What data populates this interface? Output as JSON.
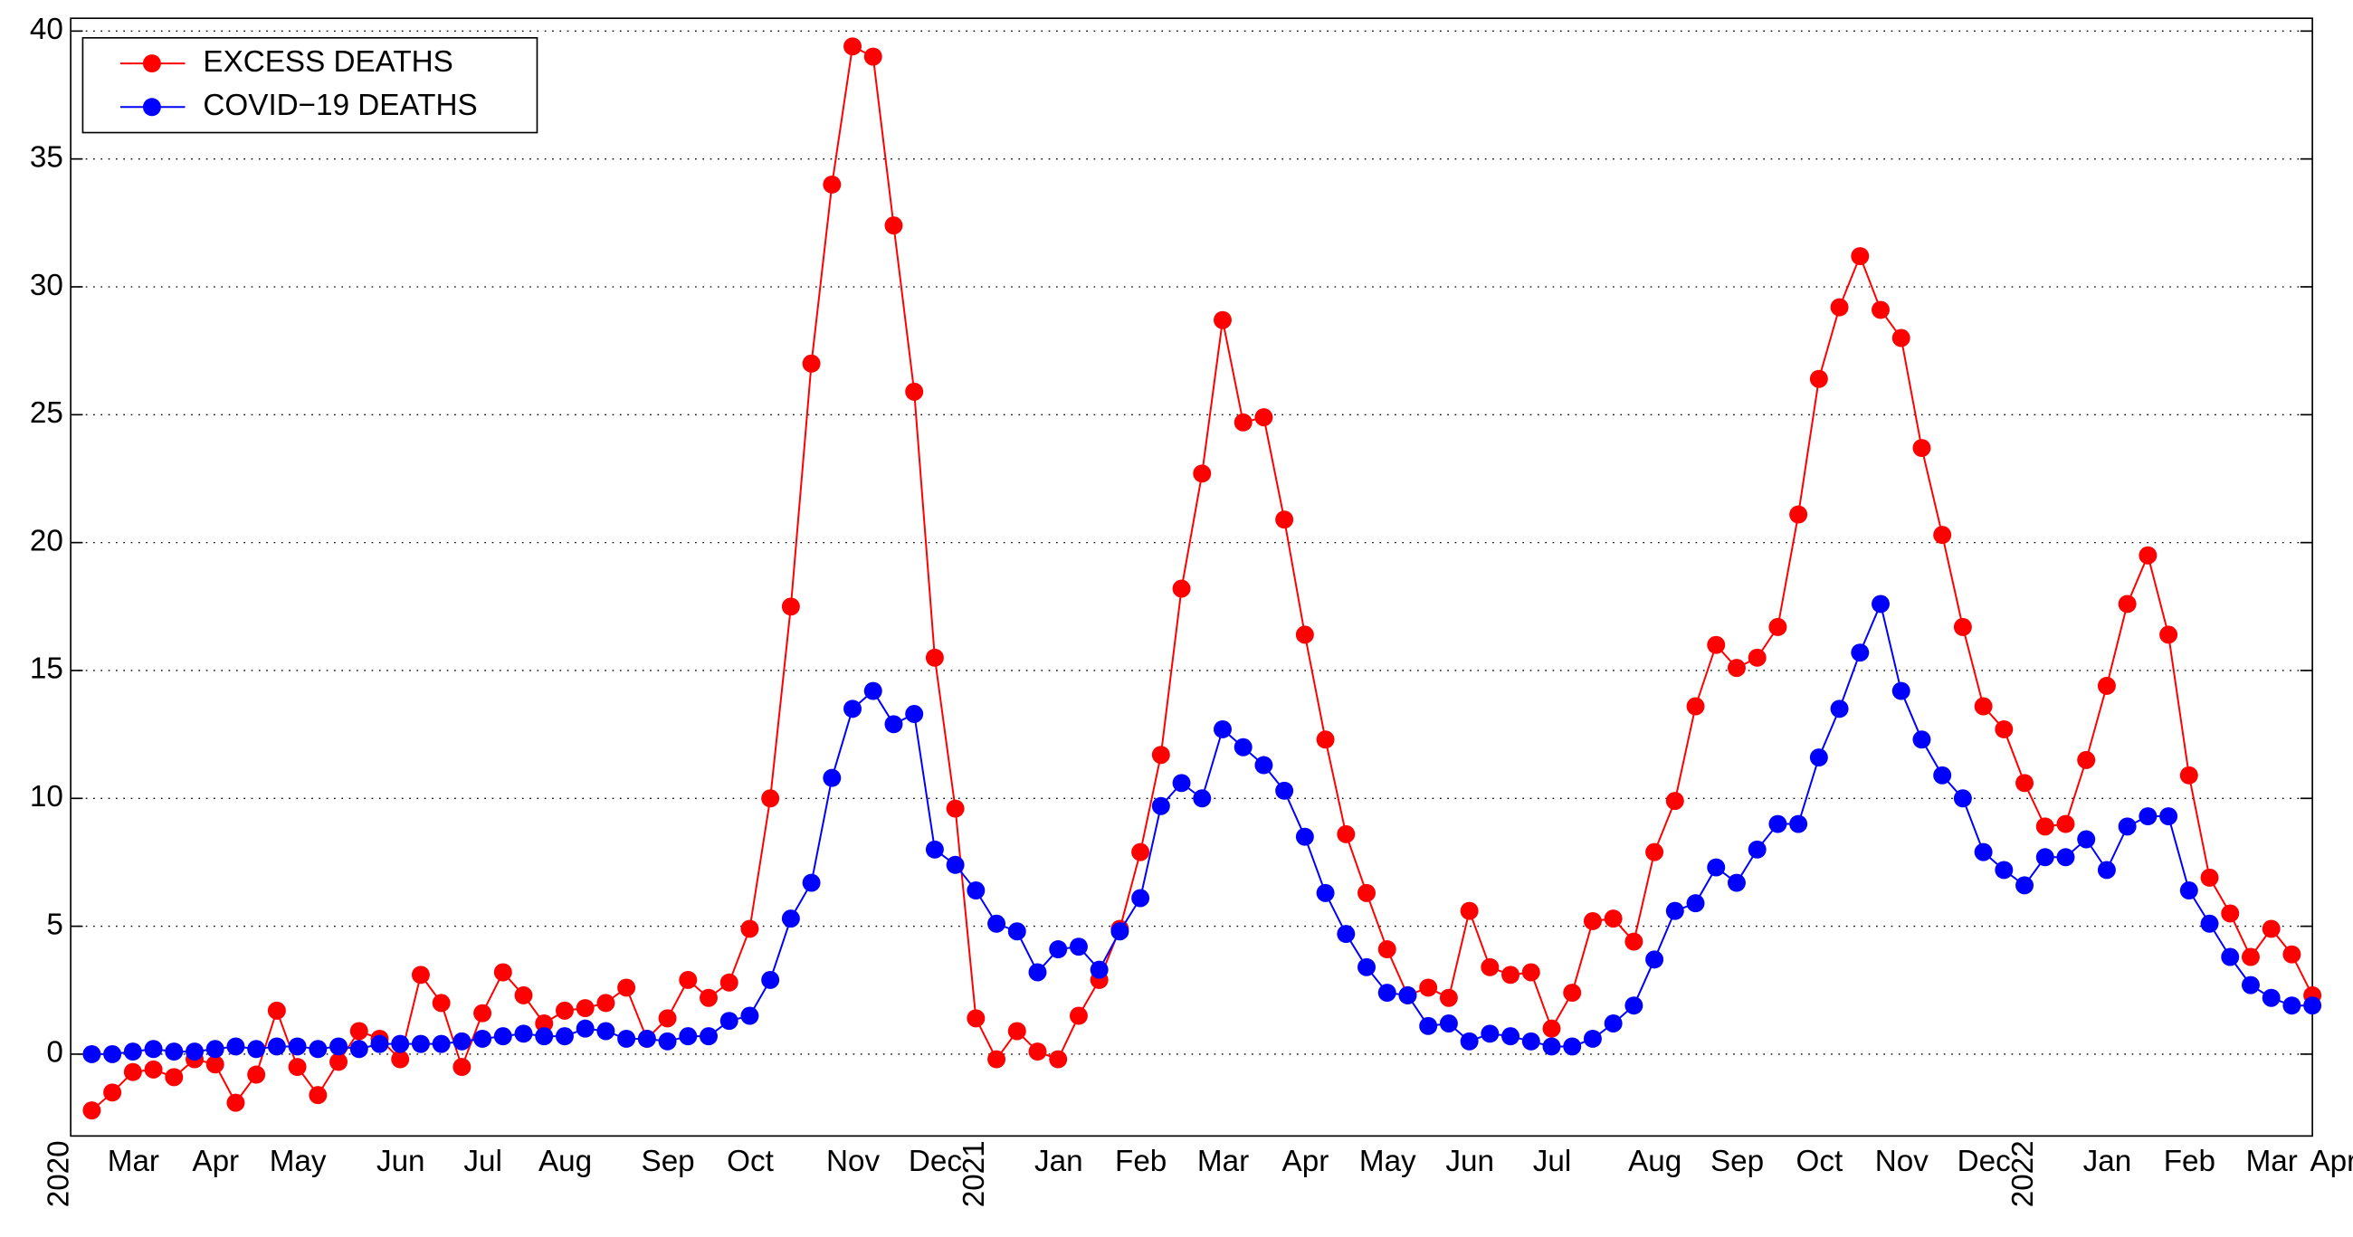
{
  "chart_data": {
    "type": "line",
    "categories": [
      null,
      "Mar",
      null,
      null,
      null,
      "Apr",
      null,
      null,
      null,
      "May",
      null,
      null,
      null,
      null,
      "Jun",
      null,
      null,
      null,
      "Jul",
      null,
      null,
      null,
      "Aug",
      null,
      null,
      null,
      null,
      "Sep",
      null,
      null,
      null,
      "Oct",
      null,
      null,
      null,
      null,
      "Nov",
      null,
      null,
      null,
      "Dec",
      null,
      null,
      null,
      null,
      null,
      "Jan",
      null,
      null,
      null,
      "Feb",
      null,
      null,
      null,
      "Mar",
      null,
      null,
      null,
      "Apr",
      null,
      null,
      null,
      "May",
      null,
      null,
      null,
      "Jun",
      null,
      null,
      null,
      "Jul",
      null,
      null,
      null,
      null,
      "Aug",
      null,
      null,
      null,
      "Sep",
      null,
      null,
      null,
      "Oct",
      null,
      null,
      null,
      "Nov",
      null,
      null,
      null,
      "Dec",
      null,
      null,
      null,
      null,
      null,
      "Jan",
      null,
      null,
      null,
      "Feb",
      null,
      null,
      null,
      "Mar",
      null,
      null,
      "Apr"
    ],
    "year_labels": [
      "2020",
      null,
      null,
      null,
      null,
      null,
      null,
      null,
      null,
      null,
      null,
      null,
      null,
      null,
      null,
      null,
      null,
      null,
      null,
      null,
      null,
      null,
      null,
      null,
      null,
      null,
      null,
      null,
      null,
      null,
      null,
      null,
      null,
      null,
      null,
      null,
      null,
      null,
      null,
      null,
      null,
      null,
      null,
      "2021",
      null,
      null,
      null,
      null,
      null,
      null,
      null,
      null,
      null,
      null,
      null,
      null,
      null,
      null,
      null,
      null,
      null,
      null,
      null,
      null,
      null,
      null,
      null,
      null,
      null,
      null,
      null,
      null,
      null,
      null,
      null,
      null,
      null,
      null,
      null,
      null,
      null,
      null,
      null,
      null,
      null,
      null,
      null,
      null,
      null,
      null,
      null,
      null,
      null,
      null,
      "2022",
      null,
      null,
      null,
      null,
      null,
      null,
      null,
      null,
      null,
      null,
      null,
      null,
      null,
      null
    ],
    "series": [
      {
        "name": "EXCESS DEATHS",
        "color": "#ff0000",
        "values": [
          -2.2,
          -1.5,
          -0.7,
          -0.6,
          -0.9,
          -0.2,
          -0.4,
          -1.9,
          -0.8,
          1.7,
          -0.5,
          -1.6,
          -0.3,
          0.9,
          0.6,
          -0.2,
          3.1,
          2.0,
          -0.5,
          1.6,
          3.2,
          2.3,
          1.2,
          1.7,
          1.8,
          2.0,
          2.6,
          0.6,
          1.4,
          2.9,
          2.2,
          2.8,
          4.9,
          10.0,
          17.5,
          27.0,
          34.0,
          39.4,
          39.0,
          32.4,
          25.9,
          15.5,
          9.6,
          1.4,
          -0.2,
          0.9,
          0.1,
          -0.2,
          1.5,
          2.9,
          4.9,
          7.9,
          11.7,
          18.2,
          22.7,
          28.7,
          24.7,
          24.9,
          20.9,
          16.4,
          12.3,
          8.6,
          6.3,
          4.1,
          2.3,
          2.6,
          2.2,
          5.6,
          3.4,
          3.1,
          3.2,
          1.0,
          2.4,
          5.2,
          5.3,
          4.4,
          7.9,
          9.9,
          13.6,
          16.0,
          15.1,
          15.5,
          16.7,
          21.1,
          26.4,
          29.2,
          31.2,
          29.1,
          28.0,
          23.7,
          20.3,
          16.7,
          13.6,
          12.7,
          10.6,
          8.9,
          9.0,
          11.5,
          14.4,
          17.6,
          19.5,
          16.4,
          10.9,
          6.9,
          5.5,
          3.8,
          4.9,
          3.9,
          2.3
        ]
      },
      {
        "name": "COVID−19 DEATHS",
        "color": "#0000ff",
        "values": [
          0.0,
          0.0,
          0.1,
          0.2,
          0.1,
          0.1,
          0.2,
          0.3,
          0.2,
          0.3,
          0.3,
          0.2,
          0.3,
          0.2,
          0.4,
          0.4,
          0.4,
          0.4,
          0.5,
          0.6,
          0.7,
          0.8,
          0.7,
          0.7,
          1.0,
          0.9,
          0.6,
          0.6,
          0.5,
          0.7,
          0.7,
          1.3,
          1.5,
          2.9,
          5.3,
          6.7,
          10.8,
          13.5,
          14.2,
          12.9,
          13.3,
          8.0,
          7.4,
          6.4,
          5.1,
          4.8,
          3.2,
          4.1,
          4.2,
          3.3,
          4.8,
          6.1,
          9.7,
          10.6,
          10.0,
          12.7,
          12.0,
          11.3,
          10.3,
          8.5,
          6.3,
          4.7,
          3.4,
          2.4,
          2.3,
          1.1,
          1.2,
          0.5,
          0.8,
          0.7,
          0.5,
          0.3,
          0.3,
          0.6,
          1.2,
          1.9,
          3.7,
          5.6,
          5.9,
          7.3,
          6.7,
          8.0,
          9.0,
          9.0,
          11.6,
          13.5,
          15.7,
          17.6,
          14.2,
          12.3,
          10.9,
          10.0,
          7.9,
          7.2,
          6.6,
          7.7,
          7.7,
          8.4,
          7.2,
          8.9,
          9.3,
          9.3,
          6.4,
          5.1,
          3.8,
          2.7,
          2.2,
          1.9,
          1.9
        ]
      }
    ],
    "ylim": [
      -3.2,
      40.5
    ],
    "yticks": [
      0,
      5,
      10,
      15,
      20,
      25,
      30,
      35,
      40
    ],
    "grid": true,
    "legend": "upper-left"
  }
}
